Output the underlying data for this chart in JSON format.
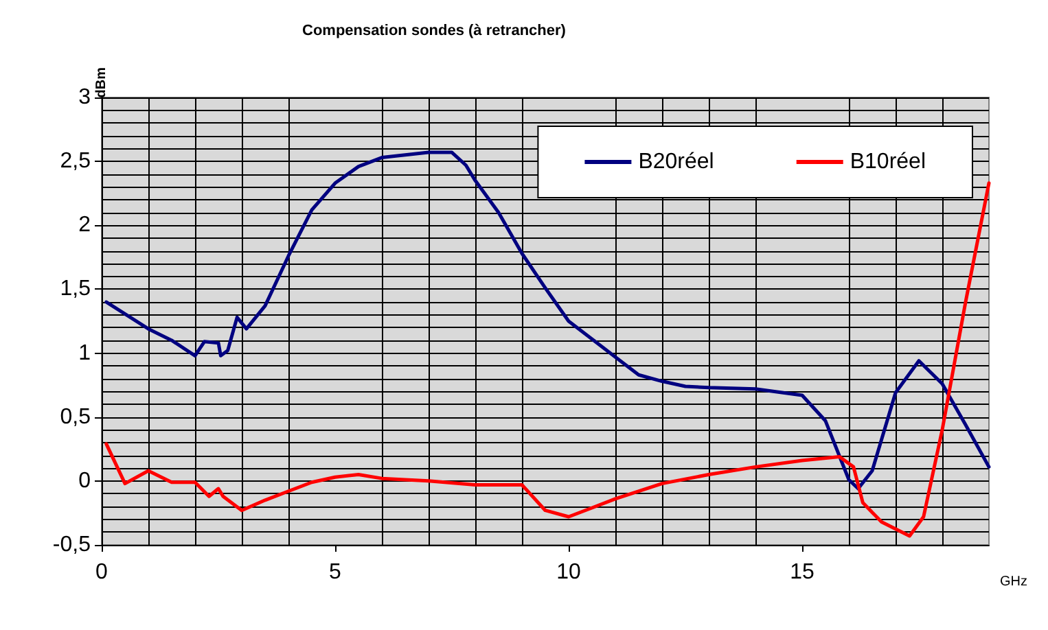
{
  "chart_data": {
    "type": "line",
    "title": "Compensation sondes (à retrancher)",
    "xlabel": "GHz",
    "ylabel": "dBm",
    "xlim": [
      0,
      19
    ],
    "xticks": [
      0,
      5,
      10,
      15
    ],
    "ylim": [
      -0.5,
      3
    ],
    "yticks": [
      {
        "value": -0.5,
        "label": "-0,5"
      },
      0,
      {
        "value": 0.5,
        "label": "0,5"
      },
      1,
      {
        "value": 1.5,
        "label": "1,5"
      },
      2,
      {
        "value": 2.5,
        "label": "2,5"
      },
      3
    ],
    "grid": true,
    "legend": "top right",
    "marker": "none",
    "line_style": "solid",
    "series": [
      {
        "name": "B20réel",
        "color": "#000080",
        "x": [
          0.1,
          1,
          1.5,
          2,
          2.2,
          2.5,
          2.55,
          2.7,
          2.9,
          3.1,
          3.5,
          4,
          4.5,
          5,
          5.5,
          6,
          7,
          7.5,
          7.8,
          8,
          8.5,
          9,
          9.5,
          10,
          11,
          11.5,
          12,
          12.5,
          13,
          14,
          15,
          15.5,
          16,
          16.2,
          16.5,
          17,
          17.5,
          18,
          18.5,
          19
        ],
        "values": [
          1.4,
          1.19,
          1.1,
          0.98,
          1.09,
          1.08,
          0.98,
          1.02,
          1.28,
          1.19,
          1.37,
          1.76,
          2.12,
          2.33,
          2.46,
          2.53,
          2.57,
          2.57,
          2.47,
          2.35,
          2.1,
          1.78,
          1.51,
          1.25,
          0.97,
          0.83,
          0.78,
          0.74,
          0.73,
          0.72,
          0.67,
          0.47,
          0.01,
          -0.06,
          0.08,
          0.69,
          0.94,
          0.76,
          0.44,
          0.11
        ]
      },
      {
        "name": "B10réel",
        "color": "#ff0000",
        "x": [
          0.1,
          0.5,
          1,
          1.5,
          2,
          2.3,
          2.5,
          2.6,
          3,
          3.5,
          4,
          4.5,
          5,
          5.5,
          6,
          7,
          8,
          9,
          9.5,
          10,
          10.5,
          11,
          12,
          13,
          14,
          15,
          15.8,
          16.1,
          16.3,
          16.7,
          17.3,
          17.6,
          18,
          18.5,
          19
        ],
        "values": [
          0.29,
          -0.02,
          0.08,
          -0.01,
          -0.01,
          -0.12,
          -0.06,
          -0.12,
          -0.23,
          -0.15,
          -0.08,
          -0.01,
          0.03,
          0.05,
          0.02,
          0,
          -0.03,
          -0.03,
          -0.23,
          -0.28,
          -0.21,
          -0.14,
          -0.02,
          0.05,
          0.11,
          0.16,
          0.19,
          0.11,
          -0.17,
          -0.32,
          -0.43,
          -0.28,
          0.4,
          1.4,
          2.33
        ]
      }
    ]
  }
}
